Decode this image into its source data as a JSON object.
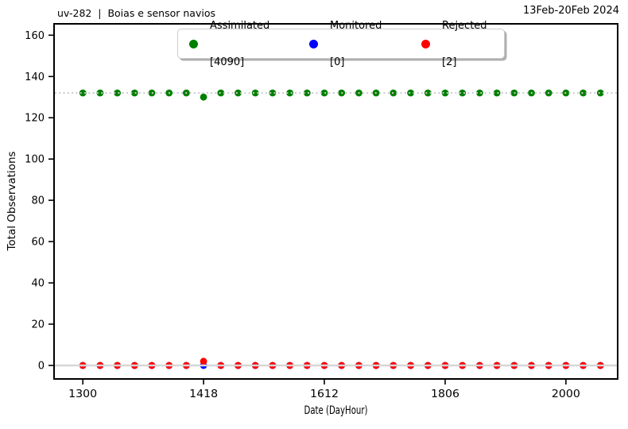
{
  "header": {
    "left_title": "uv-282  |  Boias e sensor navios",
    "right_title": "13Feb-20Feb 2024"
  },
  "chart_data": {
    "type": "scatter",
    "title": "uv-282 | Boias e sensor navios",
    "subtitle": "13Feb-20Feb 2024",
    "xlabel": "Date (DayHour)",
    "ylabel": "Total Observations",
    "grid": false,
    "legend_position": "upper center",
    "xlim_hours_from_13Feb00": [
      -10,
      186
    ],
    "ylim": [
      -6.54,
      165.5
    ],
    "x_tick_hours": [
      0,
      42,
      84,
      126,
      168
    ],
    "x_tick_labels": [
      "1300",
      "1418",
      "1612",
      "1806",
      "2000"
    ],
    "y_ticks": [
      0,
      20,
      40,
      60,
      80,
      100,
      120,
      140,
      160
    ],
    "x_hours": [
      0,
      6,
      12,
      18,
      24,
      30,
      36,
      42,
      48,
      54,
      60,
      66,
      72,
      78,
      84,
      90,
      96,
      102,
      108,
      114,
      120,
      126,
      132,
      138,
      144,
      150,
      156,
      162,
      168,
      174,
      180
    ],
    "series": [
      {
        "name": "Assimilated",
        "total": 4090,
        "color": "#008000",
        "values": [
          132,
          132,
          132,
          132,
          132,
          132,
          132,
          130,
          132,
          132,
          132,
          132,
          132,
          132,
          132,
          132,
          132,
          132,
          132,
          132,
          132,
          132,
          132,
          132,
          132,
          132,
          132,
          132,
          132,
          132,
          132
        ]
      },
      {
        "name": "Monitored",
        "total": 0,
        "color": "#0000ff",
        "values": [
          0,
          0,
          0,
          0,
          0,
          0,
          0,
          0,
          0,
          0,
          0,
          0,
          0,
          0,
          0,
          0,
          0,
          0,
          0,
          0,
          0,
          0,
          0,
          0,
          0,
          0,
          0,
          0,
          0,
          0,
          0
        ]
      },
      {
        "name": "Rejected",
        "total": 2,
        "color": "#ff0000",
        "values": [
          0,
          0,
          0,
          0,
          0,
          0,
          0,
          2,
          0,
          0,
          0,
          0,
          0,
          0,
          0,
          0,
          0,
          0,
          0,
          0,
          0,
          0,
          0,
          0,
          0,
          0,
          0,
          0,
          0,
          0,
          0
        ]
      }
    ],
    "reference_lines": [
      {
        "y": 132,
        "style": "dotted",
        "color": "#c9c9c9"
      },
      {
        "y": 0,
        "style": "solid",
        "color": "#d6d6d6"
      }
    ],
    "legend": {
      "entries": [
        {
          "label": "Assimilated",
          "bracket": "[4090]"
        },
        {
          "label": "Monitored",
          "bracket": "[0]"
        },
        {
          "label": "Rejected",
          "bracket": "[2]"
        }
      ]
    }
  }
}
